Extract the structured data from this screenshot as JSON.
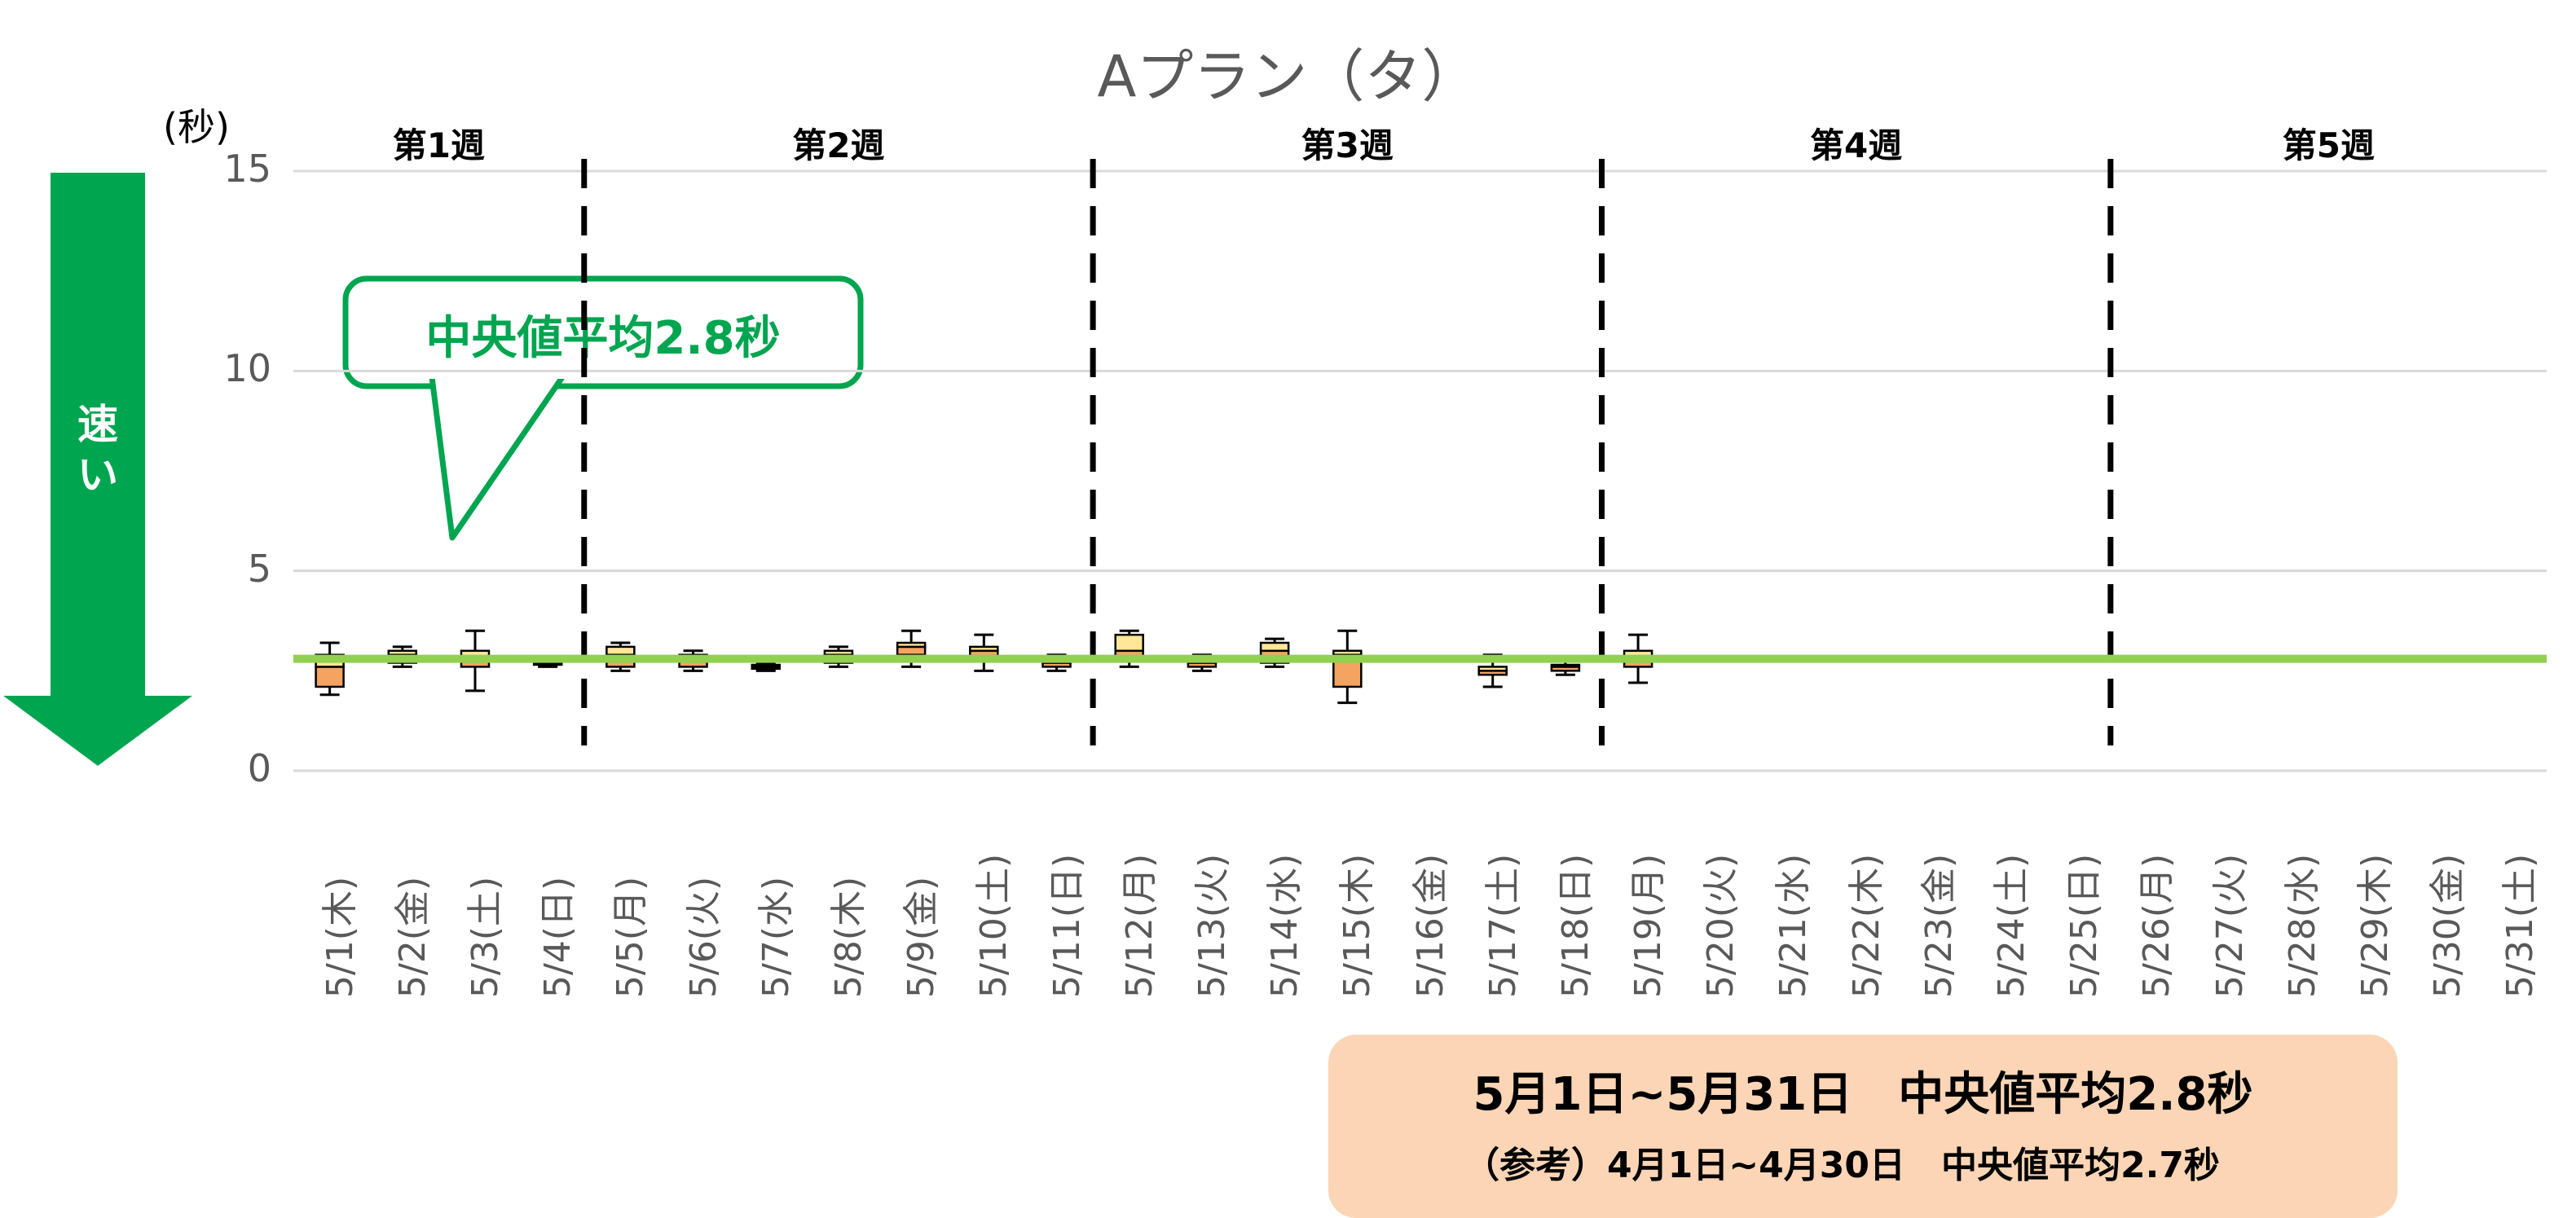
{
  "unit_label": "(秒)",
  "arrow_label": "速い",
  "callout_text": "中央値平均2.8秒",
  "summary": {
    "main": "5月1日~5月31日　中央値平均2.8秒",
    "reference": "（参考）4月1日~4月30日　中央値平均2.7秒"
  },
  "colors": {
    "arrow": "#00A550",
    "callout_border": "#00A550",
    "mean_line": "#92D050",
    "lower_box": "#F4A460",
    "upper_box": "#FFE699",
    "box_border": "#000000",
    "gridline": "#D9D9D9",
    "summary_bg": "#FBD5B5"
  },
  "chart_data": {
    "type": "boxplot",
    "title": "Aプラン（タ）",
    "xlabel": "",
    "ylabel": "(秒)",
    "ylim": [
      0,
      15
    ],
    "yticks": [
      "0",
      "5",
      "10",
      "15"
    ],
    "grid": true,
    "categories": [
      "5/1(木)",
      "5/2(金)",
      "5/3(土)",
      "5/4(日)",
      "5/5(月)",
      "5/6(火)",
      "5/7(水)",
      "5/8(木)",
      "5/9(金)",
      "5/10(土)",
      "5/11(日)",
      "5/12(月)",
      "5/13(火)",
      "5/14(水)",
      "5/15(木)",
      "5/16(金)",
      "5/17(土)",
      "5/18(日)",
      "5/19(月)",
      "5/20(火)",
      "5/21(水)",
      "5/22(木)",
      "5/23(金)",
      "5/24(土)",
      "5/25(日)",
      "5/26(月)",
      "5/27(火)",
      "5/28(水)",
      "5/29(木)",
      "5/30(金)",
      "5/31(土)"
    ],
    "boxes": [
      {
        "date": "5/1(木)",
        "min": 1.9,
        "q1": 2.1,
        "median": 2.6,
        "q3": 2.9,
        "max": 3.2
      },
      {
        "date": "5/2(金)",
        "min": 2.6,
        "q1": 2.7,
        "median": 2.9,
        "q3": 3.0,
        "max": 3.1
      },
      {
        "date": "5/3(土)",
        "min": 2.0,
        "q1": 2.6,
        "median": 2.8,
        "q3": 3.0,
        "max": 3.5
      },
      {
        "date": "5/4(日)",
        "min": 2.6,
        "q1": 2.65,
        "median": 2.7,
        "q3": 2.75,
        "max": 2.8
      },
      {
        "date": "5/5(月)",
        "min": 2.5,
        "q1": 2.6,
        "median": 2.9,
        "q3": 3.1,
        "max": 3.2
      },
      {
        "date": "5/6(火)",
        "min": 2.5,
        "q1": 2.6,
        "median": 2.8,
        "q3": 2.9,
        "max": 3.0
      },
      {
        "date": "5/7(水)",
        "min": 2.5,
        "q1": 2.55,
        "median": 2.6,
        "q3": 2.65,
        "max": 2.7
      },
      {
        "date": "5/8(木)",
        "min": 2.6,
        "q1": 2.7,
        "median": 2.9,
        "q3": 3.0,
        "max": 3.1
      },
      {
        "date": "5/9(金)",
        "min": 2.6,
        "q1": 2.9,
        "median": 3.1,
        "q3": 3.2,
        "max": 3.5
      },
      {
        "date": "5/10(土)",
        "min": 2.5,
        "q1": 2.8,
        "median": 3.0,
        "q3": 3.1,
        "max": 3.4
      },
      {
        "date": "5/11(日)",
        "min": 2.5,
        "q1": 2.6,
        "median": 2.7,
        "q3": 2.8,
        "max": 2.9
      },
      {
        "date": "5/12(月)",
        "min": 2.6,
        "q1": 2.8,
        "median": 3.0,
        "q3": 3.4,
        "max": 3.5
      },
      {
        "date": "5/13(火)",
        "min": 2.5,
        "q1": 2.6,
        "median": 2.7,
        "q3": 2.8,
        "max": 2.9
      },
      {
        "date": "5/14(水)",
        "min": 2.6,
        "q1": 2.7,
        "median": 3.0,
        "q3": 3.2,
        "max": 3.3
      },
      {
        "date": "5/15(木)",
        "min": 1.7,
        "q1": 2.1,
        "median": 2.9,
        "q3": 3.0,
        "max": 3.5
      },
      {
        "date": "5/16(金)",
        "min": null,
        "q1": null,
        "median": null,
        "q3": null,
        "max": null
      },
      {
        "date": "5/17(土)",
        "min": 2.1,
        "q1": 2.4,
        "median": 2.5,
        "q3": 2.6,
        "max": 2.9
      },
      {
        "date": "5/18(日)",
        "min": 2.4,
        "q1": 2.5,
        "median": 2.6,
        "q3": 2.65,
        "max": 2.8
      },
      {
        "date": "5/19(月)",
        "min": 2.2,
        "q1": 2.6,
        "median": 2.8,
        "q3": 3.0,
        "max": 3.4
      },
      {
        "date": "5/20(火)",
        "min": null,
        "q1": null,
        "median": null,
        "q3": null,
        "max": null
      },
      {
        "date": "5/21(水)",
        "min": null,
        "q1": null,
        "median": null,
        "q3": null,
        "max": null
      },
      {
        "date": "5/22(木)",
        "min": null,
        "q1": null,
        "median": null,
        "q3": null,
        "max": null
      },
      {
        "date": "5/23(金)",
        "min": null,
        "q1": null,
        "median": null,
        "q3": null,
        "max": null
      },
      {
        "date": "5/24(土)",
        "min": null,
        "q1": null,
        "median": null,
        "q3": null,
        "max": null
      },
      {
        "date": "5/25(日)",
        "min": null,
        "q1": null,
        "median": null,
        "q3": null,
        "max": null
      },
      {
        "date": "5/26(月)",
        "min": null,
        "q1": null,
        "median": null,
        "q3": null,
        "max": null
      },
      {
        "date": "5/27(火)",
        "min": null,
        "q1": null,
        "median": null,
        "q3": null,
        "max": null
      },
      {
        "date": "5/28(水)",
        "min": null,
        "q1": null,
        "median": null,
        "q3": null,
        "max": null
      },
      {
        "date": "5/29(木)",
        "min": null,
        "q1": null,
        "median": null,
        "q3": null,
        "max": null
      },
      {
        "date": "5/30(金)",
        "min": null,
        "q1": null,
        "median": null,
        "q3": null,
        "max": null
      },
      {
        "date": "5/31(土)",
        "min": null,
        "q1": null,
        "median": null,
        "q3": null,
        "max": null
      }
    ],
    "reference_line": {
      "value": 2.8
    },
    "weeks": [
      {
        "label": "第1週",
        "first_day": 1,
        "last_day": 4
      },
      {
        "label": "第2週",
        "first_day": 5,
        "last_day": 11
      },
      {
        "label": "第3週",
        "first_day": 12,
        "last_day": 18
      },
      {
        "label": "第4週",
        "first_day": 19,
        "last_day": 25
      },
      {
        "label": "第5週",
        "first_day": 26,
        "last_day": 31
      }
    ],
    "week_separators_after_day": [
      4,
      11,
      18,
      25
    ]
  }
}
